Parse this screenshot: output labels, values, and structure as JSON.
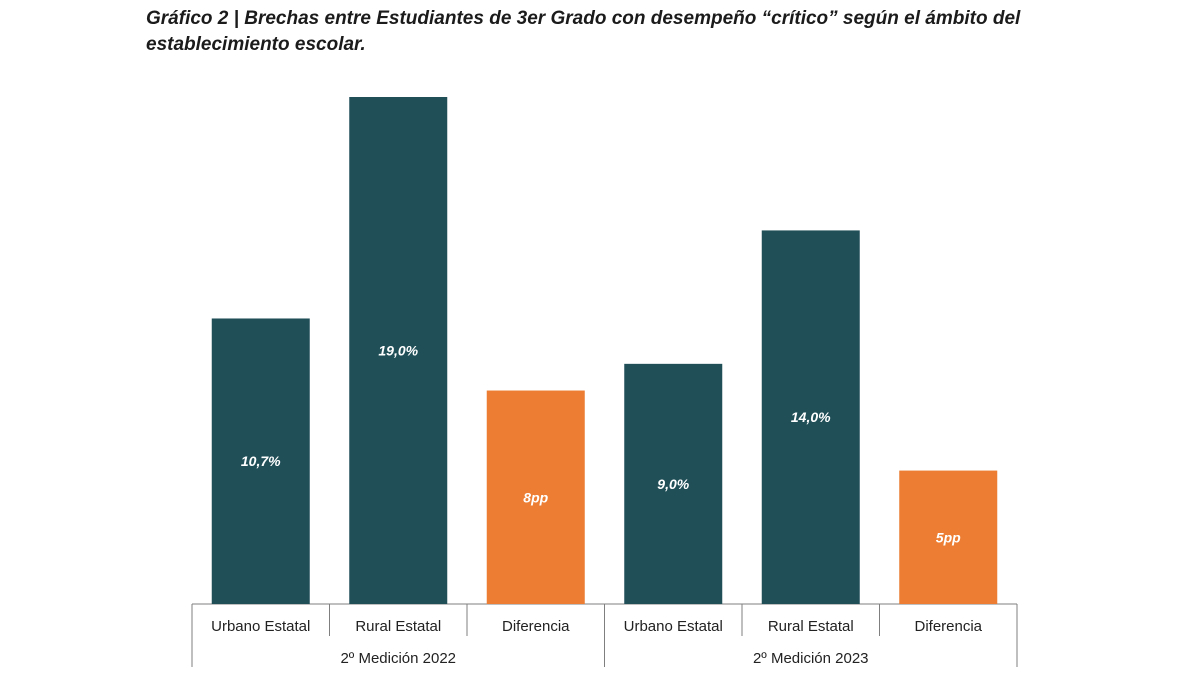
{
  "title": "Gráfico 2 | Brechas entre Estudiantes de 3er Grado con desempeño “crítico” según el ámbito del establecimiento escolar.",
  "chart_data": {
    "type": "bar",
    "title": "Gráfico 2 | Brechas entre Estudiantes de 3er Grado con desempeño “crítico” según el ámbito del establecimiento escolar.",
    "xlabel": "",
    "ylabel": "",
    "ylim": [
      0,
      20
    ],
    "colors": {
      "series": "#204f58",
      "difference": "#ec7d32",
      "label": "#ffffff"
    },
    "groups": [
      {
        "name": "2º Medición 2022",
        "bars": [
          {
            "category": "Urbano Estatal",
            "value": 10.7,
            "label": "10,7%",
            "kind": "series"
          },
          {
            "category": "Rural Estatal",
            "value": 19.0,
            "label": "19,0%",
            "kind": "series"
          },
          {
            "category": "Diferencia",
            "value": 8,
            "label": "8pp",
            "kind": "difference"
          }
        ]
      },
      {
        "name": "2º Medición 2023",
        "bars": [
          {
            "category": "Urbano Estatal",
            "value": 9.0,
            "label": "9,0%",
            "kind": "series"
          },
          {
            "category": "Rural Estatal",
            "value": 14.0,
            "label": "14,0%",
            "kind": "series"
          },
          {
            "category": "Diferencia",
            "value": 5,
            "label": "5pp",
            "kind": "difference"
          }
        ]
      }
    ]
  }
}
